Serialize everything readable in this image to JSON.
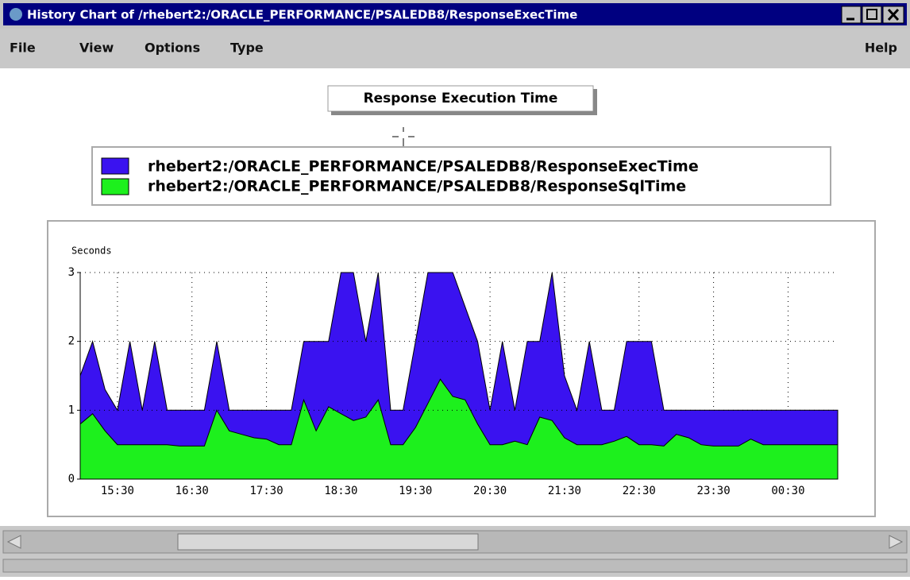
{
  "window": {
    "title": "History Chart of /rhebert2:/ORACLE_PERFORMANCE/PSALEDB8/ResponseExecTime",
    "menu": [
      "File",
      "View",
      "Options",
      "Type"
    ],
    "help": "Help"
  },
  "chart_data": {
    "type": "area",
    "title": "Response Execution Time",
    "y_label": "Seconds",
    "categories": [
      null,
      null,
      null,
      "15:30",
      null,
      null,
      null,
      null,
      null,
      "16:30",
      null,
      null,
      null,
      null,
      null,
      "17:30",
      null,
      null,
      null,
      null,
      null,
      "18:30",
      null,
      null,
      null,
      null,
      null,
      "19:30",
      null,
      null,
      null,
      null,
      null,
      "20:30",
      null,
      null,
      null,
      null,
      null,
      "21:30",
      null,
      null,
      null,
      null,
      null,
      "22:30",
      null,
      null,
      null,
      null,
      null,
      "23:30",
      null,
      null,
      null,
      null,
      null,
      "00:30",
      null,
      null,
      null,
      null
    ],
    "series": [
      {
        "name": "rhebert2:/ORACLE_PERFORMANCE/PSALEDB8/ResponseExecTime",
        "color": "#3a12f0",
        "values": [
          1.5,
          2,
          1.3,
          1,
          2,
          1,
          2,
          1,
          1,
          1,
          1,
          2,
          1,
          1,
          1,
          1,
          1,
          1,
          2,
          2,
          2,
          3,
          3,
          2,
          3,
          1,
          1,
          2,
          3,
          3,
          3,
          2.5,
          2,
          1,
          2,
          1,
          2,
          2,
          3,
          1.5,
          1,
          2,
          1,
          1,
          2,
          2,
          2,
          1,
          1,
          1,
          1,
          1,
          1,
          1,
          1,
          1,
          1,
          1,
          1,
          1,
          1,
          1
        ]
      },
      {
        "name": "rhebert2:/ORACLE_PERFORMANCE/PSALEDB8/ResponseSqlTime",
        "color": "#1df01d",
        "values": [
          0.8,
          0.95,
          0.7,
          0.5,
          0.5,
          0.5,
          0.5,
          0.5,
          0.48,
          0.48,
          0.48,
          1,
          0.7,
          0.65,
          0.6,
          0.58,
          0.5,
          0.5,
          1.15,
          0.7,
          1.05,
          0.95,
          0.85,
          0.9,
          1.15,
          0.5,
          0.5,
          0.75,
          1.1,
          1.45,
          1.2,
          1.15,
          0.8,
          0.5,
          0.5,
          0.55,
          0.5,
          0.9,
          0.85,
          0.6,
          0.5,
          0.5,
          0.5,
          0.55,
          0.62,
          0.5,
          0.5,
          0.48,
          0.65,
          0.6,
          0.5,
          0.48,
          0.48,
          0.48,
          0.58,
          0.5,
          0.5,
          0.5,
          0.5,
          0.5,
          0.5,
          0.5
        ]
      }
    ],
    "ylim": [
      0,
      3
    ],
    "yticks": [
      0,
      1,
      2,
      3
    ],
    "grid": true
  }
}
